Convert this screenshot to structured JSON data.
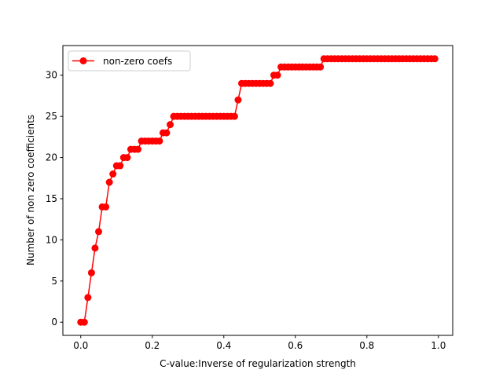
{
  "chart_data": {
    "type": "line",
    "title": "",
    "xlabel": "C-value:Inverse of regularization strength",
    "ylabel": "Number of non zero coefficients",
    "xlim": [
      -0.05,
      1.04
    ],
    "ylim": [
      -1.6,
      33.6
    ],
    "xticks": [
      0.0,
      0.2,
      0.4,
      0.6,
      0.8,
      1.0
    ],
    "xtick_labels": [
      "0.0",
      "0.2",
      "0.4",
      "0.6",
      "0.8",
      "1.0"
    ],
    "yticks": [
      0,
      5,
      10,
      15,
      20,
      25,
      30
    ],
    "ytick_labels": [
      "0",
      "5",
      "10",
      "15",
      "20",
      "25",
      "30"
    ],
    "grid": false,
    "legend_position": "top-left",
    "colors": {
      "series": "#ff0000",
      "axes": "#000000",
      "background": "#ffffff"
    },
    "series": [
      {
        "name": "non-zero coefs",
        "marker": "circle",
        "x": [
          0.0001,
          0.01,
          0.02,
          0.03,
          0.04,
          0.05,
          0.06,
          0.07,
          0.08,
          0.09,
          0.1,
          0.11,
          0.12,
          0.13,
          0.14,
          0.15,
          0.16,
          0.17,
          0.18,
          0.19,
          0.2,
          0.21,
          0.22,
          0.23,
          0.24,
          0.25,
          0.26,
          0.27,
          0.28,
          0.29,
          0.3,
          0.31,
          0.32,
          0.33,
          0.34,
          0.35,
          0.36,
          0.37,
          0.38,
          0.39,
          0.4,
          0.41,
          0.42,
          0.43,
          0.44,
          0.45,
          0.46,
          0.47,
          0.48,
          0.49,
          0.5,
          0.51,
          0.52,
          0.53,
          0.54,
          0.55,
          0.56,
          0.57,
          0.58,
          0.59,
          0.6,
          0.61,
          0.62,
          0.63,
          0.64,
          0.65,
          0.66,
          0.67,
          0.68,
          0.69,
          0.7,
          0.71,
          0.72,
          0.73,
          0.74,
          0.75,
          0.76,
          0.77,
          0.78,
          0.79,
          0.8,
          0.81,
          0.82,
          0.83,
          0.84,
          0.85,
          0.86,
          0.87,
          0.88,
          0.89,
          0.9,
          0.91,
          0.92,
          0.93,
          0.94,
          0.95,
          0.96,
          0.97,
          0.98,
          0.99
        ],
        "y": [
          0,
          0,
          3,
          6,
          9,
          11,
          14,
          14,
          17,
          18,
          19,
          19,
          20,
          20,
          21,
          21,
          21,
          22,
          22,
          22,
          22,
          22,
          22,
          23,
          23,
          24,
          25,
          25,
          25,
          25,
          25,
          25,
          25,
          25,
          25,
          25,
          25,
          25,
          25,
          25,
          25,
          25,
          25,
          25,
          27,
          29,
          29,
          29,
          29,
          29,
          29,
          29,
          29,
          29,
          30,
          30,
          31,
          31,
          31,
          31,
          31,
          31,
          31,
          31,
          31,
          31,
          31,
          31,
          32,
          32,
          32,
          32,
          32,
          32,
          32,
          32,
          32,
          32,
          32,
          32,
          32,
          32,
          32,
          32,
          32,
          32,
          32,
          32,
          32,
          32,
          32,
          32,
          32,
          32,
          32,
          32,
          32,
          32,
          32,
          32
        ]
      }
    ]
  }
}
